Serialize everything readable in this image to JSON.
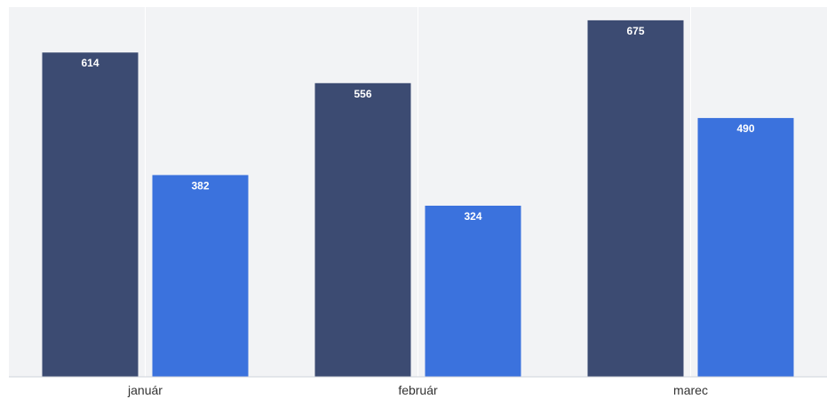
{
  "chart_data": {
    "type": "bar",
    "categories": [
      "január",
      "február",
      "marec"
    ],
    "series": [
      {
        "values": [
          614,
          556,
          675
        ],
        "color": "#3c4b72"
      },
      {
        "values": [
          382,
          324,
          490
        ],
        "color": "#3b72dd"
      }
    ],
    "ylim": [
      0,
      700
    ],
    "show_data_labels": true,
    "grid": true,
    "legend": "none",
    "background_color": "#f2f3f5",
    "label_color": "#ffffff"
  }
}
